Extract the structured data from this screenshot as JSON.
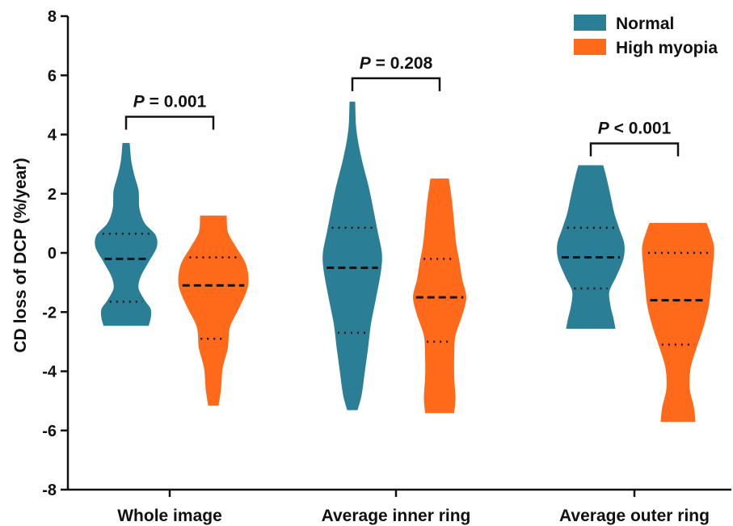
{
  "chart_data": {
    "type": "violin",
    "ylabel": "CD loss of DCP (%/year)",
    "ylim": [
      -8,
      8
    ],
    "yticks": [
      8,
      6,
      4,
      2,
      0,
      -2,
      -4,
      -6,
      -8
    ],
    "ytick_labels": [
      "8",
      "6",
      "4",
      "2",
      "0",
      "-2",
      "-4",
      "-6",
      "-8"
    ],
    "categories": [
      "Whole image",
      "Average inner ring",
      "Average outer ring"
    ],
    "series": [
      {
        "name": "Normal",
        "color": "#2a7f96",
        "stats": [
          {
            "min": -2.45,
            "max": 3.7,
            "median": -0.2,
            "q1": -1.65,
            "q3": 0.65,
            "profile": [
              [
                -2.45,
                0.55
              ],
              [
                -2.2,
                0.6
              ],
              [
                -1.9,
                0.6
              ],
              [
                -1.6,
                0.45
              ],
              [
                -1.2,
                0.3
              ],
              [
                -0.8,
                0.35
              ],
              [
                -0.3,
                0.55
              ],
              [
                0.2,
                0.75
              ],
              [
                0.6,
                0.72
              ],
              [
                1.0,
                0.45
              ],
              [
                1.5,
                0.32
              ],
              [
                2.1,
                0.3
              ],
              [
                2.6,
                0.2
              ],
              [
                3.1,
                0.12
              ],
              [
                3.7,
                0.08
              ]
            ]
          },
          {
            "min": -5.3,
            "max": 5.1,
            "median": -0.5,
            "q1": -2.7,
            "q3": 0.85,
            "profile": [
              [
                -5.3,
                0.12
              ],
              [
                -4.8,
                0.22
              ],
              [
                -4.0,
                0.3
              ],
              [
                -3.2,
                0.38
              ],
              [
                -2.4,
                0.45
              ],
              [
                -1.5,
                0.58
              ],
              [
                -0.6,
                0.7
              ],
              [
                0.0,
                0.72
              ],
              [
                0.7,
                0.62
              ],
              [
                1.4,
                0.52
              ],
              [
                2.2,
                0.4
              ],
              [
                3.0,
                0.25
              ],
              [
                3.7,
                0.14
              ],
              [
                4.3,
                0.08
              ],
              [
                5.1,
                0.06
              ]
            ]
          },
          {
            "min": -2.55,
            "max": 2.95,
            "median": -0.15,
            "q1": -1.2,
            "q3": 0.85,
            "profile": [
              [
                -2.55,
                0.6
              ],
              [
                -2.2,
                0.55
              ],
              [
                -1.8,
                0.48
              ],
              [
                -1.3,
                0.45
              ],
              [
                -0.8,
                0.62
              ],
              [
                -0.2,
                0.8
              ],
              [
                0.3,
                0.82
              ],
              [
                0.8,
                0.7
              ],
              [
                1.3,
                0.58
              ],
              [
                1.8,
                0.5
              ],
              [
                2.3,
                0.42
              ],
              [
                2.7,
                0.35
              ],
              [
                2.95,
                0.3
              ]
            ]
          }
        ]
      },
      {
        "name": "High myopia",
        "color": "#ff6a1a",
        "stats": [
          {
            "min": -5.15,
            "max": 1.25,
            "median": -1.1,
            "q1": -2.9,
            "q3": -0.15,
            "profile": [
              [
                -5.15,
                0.12
              ],
              [
                -4.6,
                0.18
              ],
              [
                -3.9,
                0.22
              ],
              [
                -3.2,
                0.35
              ],
              [
                -2.5,
                0.4
              ],
              [
                -1.8,
                0.65
              ],
              [
                -1.1,
                0.85
              ],
              [
                -0.4,
                0.8
              ],
              [
                0.2,
                0.55
              ],
              [
                0.7,
                0.35
              ],
              [
                1.25,
                0.32
              ]
            ]
          },
          {
            "min": -5.4,
            "max": 2.5,
            "median": -1.5,
            "q1": -3.0,
            "q3": -0.2,
            "profile": [
              [
                -5.4,
                0.35
              ],
              [
                -4.9,
                0.38
              ],
              [
                -4.2,
                0.35
              ],
              [
                -3.5,
                0.35
              ],
              [
                -2.8,
                0.38
              ],
              [
                -2.1,
                0.55
              ],
              [
                -1.5,
                0.65
              ],
              [
                -0.9,
                0.55
              ],
              [
                -0.3,
                0.48
              ],
              [
                0.3,
                0.4
              ],
              [
                1.0,
                0.35
              ],
              [
                1.7,
                0.3
              ],
              [
                2.2,
                0.25
              ],
              [
                2.5,
                0.22
              ]
            ]
          },
          {
            "min": -5.7,
            "max": 1.0,
            "median": -1.6,
            "q1": -3.1,
            "q3": 0.0,
            "profile": [
              [
                -5.7,
                0.42
              ],
              [
                -5.2,
                0.38
              ],
              [
                -4.6,
                0.28
              ],
              [
                -3.9,
                0.3
              ],
              [
                -3.2,
                0.45
              ],
              [
                -2.5,
                0.62
              ],
              [
                -1.8,
                0.75
              ],
              [
                -1.2,
                0.8
              ],
              [
                -0.5,
                0.85
              ],
              [
                0.2,
                0.88
              ],
              [
                0.7,
                0.78
              ],
              [
                1.0,
                0.7
              ]
            ]
          }
        ]
      }
    ],
    "annotations": [
      {
        "text_italic": "P",
        "text_rest": " = 0.001",
        "category_index": 0,
        "y": 4.6
      },
      {
        "text_italic": "P",
        "text_rest": " = 0.208",
        "category_index": 1,
        "y": 5.9
      },
      {
        "text_italic": "P",
        "text_rest": " < 0.001",
        "category_index": 2,
        "y": 3.7
      }
    ],
    "legend": {
      "position": "top-right",
      "items": [
        "Normal",
        "High myopia"
      ]
    },
    "grid": false
  }
}
